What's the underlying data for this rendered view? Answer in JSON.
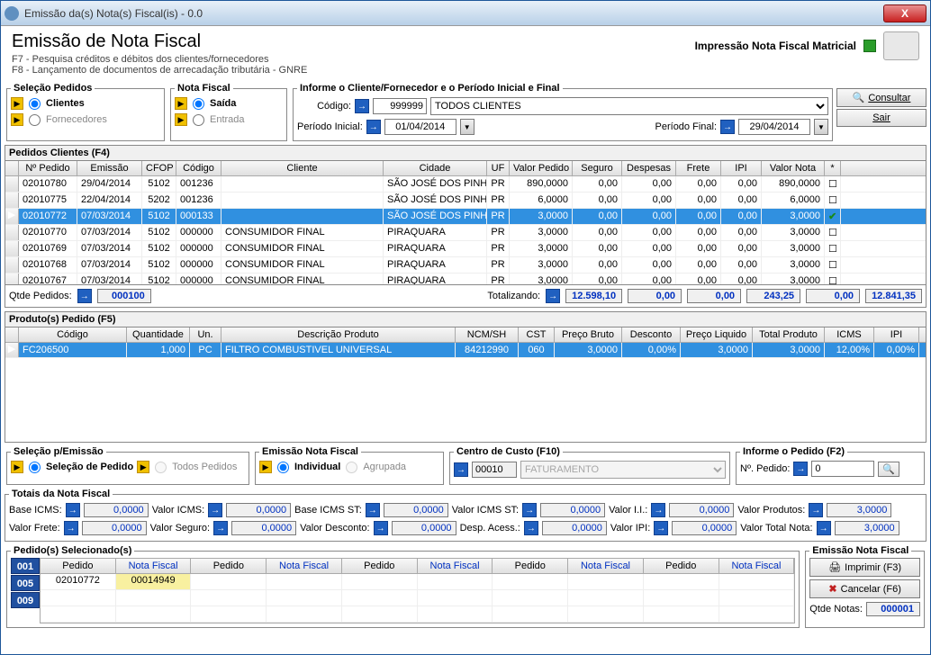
{
  "titlebar": {
    "text": "Emissão da(s) Nota(s) Fiscal(is) - 0.0"
  },
  "header": {
    "title": "Emissão de Nota Fiscal",
    "sub1": "F7 - Pesquisa créditos e débitos dos clientes/fornecedores",
    "sub2": "F8 - Lançamento de documentos de arrecadação tributária - GNRE",
    "matricial": "Impressão Nota Fiscal Matricial"
  },
  "selecao_pedidos": {
    "legend": "Seleção Pedidos",
    "opt1": "Clientes",
    "opt2": "Fornecedores"
  },
  "nota_fiscal": {
    "legend": "Nota Fiscal",
    "opt1": "Saída",
    "opt2": "Entrada"
  },
  "informe_cliente": {
    "legend": "Informe o Cliente/Fornecedor e o Período Inicial e Final",
    "codigo_label": "Código:",
    "codigo": "999999",
    "cliente": "TODOS CLIENTES",
    "periodo_ini_label": "Período Inicial:",
    "periodo_ini": "01/04/2014",
    "periodo_fin_label": "Período Final:",
    "periodo_fin": "29/04/2014"
  },
  "buttons": {
    "consultar": "Consultar",
    "sair": "Sair",
    "imprimir": "Imprimir   (F3)",
    "cancelar": "Cancelar (F6)"
  },
  "pedidos_grid": {
    "title": "Pedidos Clientes (F4)",
    "cols": [
      "Nº Pedido",
      "Emissão",
      "CFOP",
      "Código",
      "Cliente",
      "Cidade",
      "UF",
      "Valor Pedido",
      "Seguro",
      "Despesas",
      "Frete",
      "IPI",
      "Valor Nota",
      "*"
    ],
    "rows": [
      {
        "num": "02010780",
        "em": "29/04/2014",
        "cfop": "5102",
        "cod": "001236",
        "cli": "",
        "cid": "SÃO JOSÉ DOS PINH",
        "uf": "PR",
        "vp": "890,0000",
        "seg": "0,00",
        "desp": "0,00",
        "fr": "0,00",
        "ipi": "0,00",
        "vn": "890,0000",
        "sel": false,
        "chk": false
      },
      {
        "num": "02010775",
        "em": "22/04/2014",
        "cfop": "5202",
        "cod": "001236",
        "cli": "",
        "cid": "SÃO JOSÉ DOS PINH",
        "uf": "PR",
        "vp": "6,0000",
        "seg": "0,00",
        "desp": "0,00",
        "fr": "0,00",
        "ipi": "0,00",
        "vn": "6,0000",
        "sel": false,
        "chk": false
      },
      {
        "num": "02010772",
        "em": "07/03/2014",
        "cfop": "5102",
        "cod": "000133",
        "cli": "",
        "cid": "SÃO JOSÉ DOS PINH",
        "uf": "PR",
        "vp": "3,0000",
        "seg": "0,00",
        "desp": "0,00",
        "fr": "0,00",
        "ipi": "0,00",
        "vn": "3,0000",
        "sel": true,
        "chk": true
      },
      {
        "num": "02010770",
        "em": "07/03/2014",
        "cfop": "5102",
        "cod": "000000",
        "cli": "CONSUMIDOR FINAL",
        "cid": "PIRAQUARA",
        "uf": "PR",
        "vp": "3,0000",
        "seg": "0,00",
        "desp": "0,00",
        "fr": "0,00",
        "ipi": "0,00",
        "vn": "3,0000",
        "sel": false,
        "chk": false
      },
      {
        "num": "02010769",
        "em": "07/03/2014",
        "cfop": "5102",
        "cod": "000000",
        "cli": "CONSUMIDOR FINAL",
        "cid": "PIRAQUARA",
        "uf": "PR",
        "vp": "3,0000",
        "seg": "0,00",
        "desp": "0,00",
        "fr": "0,00",
        "ipi": "0,00",
        "vn": "3,0000",
        "sel": false,
        "chk": false
      },
      {
        "num": "02010768",
        "em": "07/03/2014",
        "cfop": "5102",
        "cod": "000000",
        "cli": "CONSUMIDOR FINAL",
        "cid": "PIRAQUARA",
        "uf": "PR",
        "vp": "3,0000",
        "seg": "0,00",
        "desp": "0,00",
        "fr": "0,00",
        "ipi": "0,00",
        "vn": "3,0000",
        "sel": false,
        "chk": false
      },
      {
        "num": "02010767",
        "em": "07/03/2014",
        "cfop": "5102",
        "cod": "000000",
        "cli": "CONSUMIDOR FINAL",
        "cid": "PIRAQUARA",
        "uf": "PR",
        "vp": "3,0000",
        "seg": "0,00",
        "desp": "0,00",
        "fr": "0,00",
        "ipi": "0,00",
        "vn": "3,0000",
        "sel": false,
        "chk": false
      }
    ],
    "qtde_label": "Qtde Pedidos:",
    "qtde": "000100",
    "totalizando_label": "Totalizando:",
    "totals": [
      "12.598,10",
      "0,00",
      "0,00",
      "243,25",
      "0,00",
      "12.841,35"
    ]
  },
  "produtos_grid": {
    "title": "Produto(s) Pedido (F5)",
    "cols": [
      "Código",
      "Quantidade",
      "Un.",
      "Descrição Produto",
      "NCM/SH",
      "CST",
      "Preço Bruto",
      "Desconto",
      "Preço Liquido",
      "Total Produto",
      "ICMS",
      "IPI"
    ],
    "rows": [
      {
        "cod": "FC206500",
        "qtd": "1,000",
        "un": "PC",
        "desc": "FILTRO COMBUSTIVEL UNIVERSAL",
        "ncm": "84212990",
        "cst": "060",
        "pb": "3,0000",
        "dsc": "0,00%",
        "pl": "3,0000",
        "tp": "3,0000",
        "icms": "12,00%",
        "ipi": "0,00%",
        "sel": true
      }
    ]
  },
  "selecao_emissao": {
    "legend": "Seleção p/Emissão",
    "opt1": "Seleção de Pedido",
    "opt2": "Todos Pedidos"
  },
  "emissao_nf": {
    "legend": "Emissão Nota Fiscal",
    "opt1": "Individual",
    "opt2": "Agrupada"
  },
  "centro_custo": {
    "legend": "Centro de Custo (F10)",
    "codigo": "00010",
    "nome": "FATURAMENTO"
  },
  "informe_pedido": {
    "legend": "Informe o Pedido (F2)",
    "label": "Nº. Pedido:",
    "value": "0"
  },
  "totais_nf": {
    "legend": "Totais da Nota Fiscal",
    "r1": [
      {
        "l": "Base ICMS:",
        "v": "0,0000"
      },
      {
        "l": "Valor ICMS:",
        "v": "0,0000"
      },
      {
        "l": "Base ICMS ST:",
        "v": "0,0000"
      },
      {
        "l": "Valor ICMS ST:",
        "v": "0,0000"
      },
      {
        "l": "Valor I.I.:",
        "v": "0,0000"
      },
      {
        "l": "Valor Produtos:",
        "v": "3,0000"
      }
    ],
    "r2": [
      {
        "l": "Valor Frete:",
        "v": "0,0000"
      },
      {
        "l": "Valor Seguro:",
        "v": "0,0000"
      },
      {
        "l": "Valor Desconto:",
        "v": "0,0000"
      },
      {
        "l": "Desp. Acess.:",
        "v": "0,0000"
      },
      {
        "l": "Valor IPI:",
        "v": "0,0000"
      },
      {
        "l": "Valor Total Nota:",
        "v": "3,0000"
      }
    ]
  },
  "pedidos_sel": {
    "legend": "Pedido(s) Selecionado(s)",
    "nums": [
      "001",
      "005",
      "009"
    ],
    "header_pedido": "Pedido",
    "header_nf": "Nota Fiscal",
    "row1": {
      "pedido": "02010772",
      "nf": "00014949"
    }
  },
  "emissao_final": {
    "legend": "Emissão Nota Fiscal",
    "qtde_label": "Qtde Notas:",
    "qtde": "000001"
  },
  "colors": {
    "accent": "#2060c0",
    "selected_row": "#3090e0",
    "link_blue": "#0030c0",
    "yellow": "#f8f0a0"
  }
}
